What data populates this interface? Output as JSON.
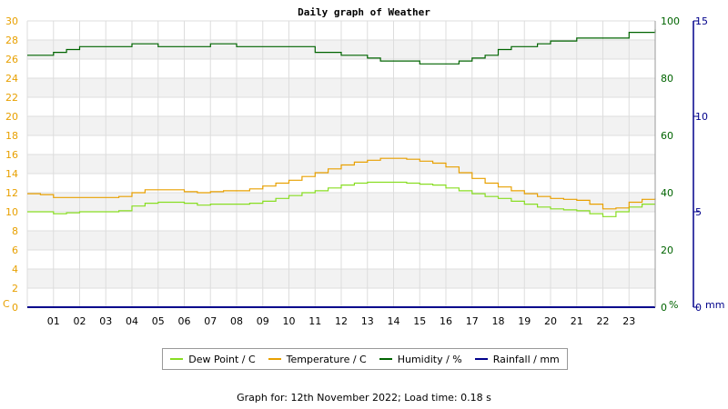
{
  "chart_data": {
    "type": "line",
    "title": "Daily graph of Weather",
    "x_ticks": [
      "01",
      "02",
      "03",
      "04",
      "05",
      "06",
      "07",
      "08",
      "09",
      "10",
      "11",
      "12",
      "13",
      "14",
      "15",
      "16",
      "17",
      "18",
      "19",
      "20",
      "21",
      "22",
      "23"
    ],
    "xlim": [
      0,
      24
    ],
    "axes": {
      "left": {
        "unit": "C",
        "min": 0,
        "max": 30,
        "ticks": [
          0,
          2,
          4,
          6,
          8,
          10,
          12,
          14,
          16,
          18,
          20,
          22,
          24,
          26,
          28,
          30
        ],
        "color": "#e8a000"
      },
      "right1": {
        "unit": "%",
        "min": 0,
        "max": 100,
        "ticks": [
          0,
          20,
          40,
          60,
          80,
          100
        ],
        "color": "#006400"
      },
      "right2": {
        "unit": "mm",
        "min": 0,
        "max": 15,
        "ticks": [
          0,
          5,
          10,
          15
        ],
        "color": "#00008b"
      }
    },
    "grid": true,
    "legend_placement": "bottom",
    "series": [
      {
        "name": "Dew Point / C",
        "axis": "left",
        "color": "#88dd22",
        "x": [
          0,
          0.5,
          1,
          1.5,
          2,
          2.5,
          3,
          3.5,
          4,
          4.5,
          5,
          5.5,
          6,
          6.5,
          7,
          7.5,
          8,
          8.5,
          9,
          9.5,
          10,
          10.5,
          11,
          11.5,
          12,
          12.5,
          13,
          13.5,
          14,
          14.5,
          15,
          15.5,
          16,
          16.5,
          17,
          17.5,
          18,
          18.5,
          19,
          19.5,
          20,
          20.5,
          21,
          21.5,
          22,
          22.5,
          23,
          23.5,
          24
        ],
        "values": [
          10,
          10,
          9.8,
          9.9,
          10,
          10,
          10,
          10.1,
          10.6,
          10.9,
          11,
          11,
          10.9,
          10.7,
          10.8,
          10.8,
          10.8,
          10.9,
          11.1,
          11.4,
          11.7,
          12,
          12.2,
          12.5,
          12.8,
          13,
          13.1,
          13.1,
          13.1,
          13,
          12.9,
          12.8,
          12.5,
          12.2,
          11.9,
          11.6,
          11.4,
          11.1,
          10.8,
          10.5,
          10.3,
          10.2,
          10.1,
          9.8,
          9.5,
          10,
          10.5,
          10.8,
          10.8
        ]
      },
      {
        "name": "Temperature / C",
        "axis": "left",
        "color": "#e8a000",
        "x": [
          0,
          0.5,
          1,
          1.5,
          2,
          2.5,
          3,
          3.5,
          4,
          4.5,
          5,
          5.5,
          6,
          6.5,
          7,
          7.5,
          8,
          8.5,
          9,
          9.5,
          10,
          10.5,
          11,
          11.5,
          12,
          12.5,
          13,
          13.5,
          14,
          14.5,
          15,
          15.5,
          16,
          16.5,
          17,
          17.5,
          18,
          18.5,
          19,
          19.5,
          20,
          20.5,
          21,
          21.5,
          22,
          22.5,
          23,
          23.5,
          24
        ],
        "values": [
          11.9,
          11.8,
          11.5,
          11.5,
          11.5,
          11.5,
          11.5,
          11.6,
          12,
          12.3,
          12.3,
          12.3,
          12.1,
          12,
          12.1,
          12.2,
          12.2,
          12.4,
          12.7,
          13,
          13.3,
          13.7,
          14.1,
          14.5,
          14.9,
          15.2,
          15.4,
          15.6,
          15.6,
          15.5,
          15.3,
          15.1,
          14.7,
          14.1,
          13.5,
          13,
          12.6,
          12.2,
          11.9,
          11.6,
          11.4,
          11.3,
          11.2,
          10.8,
          10.3,
          10.4,
          11,
          11.3,
          11.4
        ]
      },
      {
        "name": "Humidity / %",
        "axis": "right1",
        "color": "#006400",
        "x": [
          0,
          0.5,
          1,
          1.5,
          2,
          2.5,
          3,
          3.5,
          4,
          4.5,
          5,
          5.5,
          6,
          6.5,
          7,
          7.5,
          8,
          8.5,
          9,
          9.5,
          10,
          10.5,
          11,
          11.5,
          12,
          12.5,
          13,
          13.5,
          14,
          14.5,
          15,
          15.5,
          16,
          16.5,
          17,
          17.5,
          18,
          18.5,
          19,
          19.5,
          20,
          20.5,
          21,
          21.5,
          22,
          22.5,
          23,
          23.5,
          24
        ],
        "values": [
          88,
          88,
          89,
          90,
          91,
          91,
          91,
          91,
          92,
          92,
          91,
          91,
          91,
          91,
          92,
          92,
          91,
          91,
          91,
          91,
          91,
          91,
          89,
          89,
          88,
          88,
          87,
          86,
          86,
          86,
          85,
          85,
          85,
          86,
          87,
          88,
          90,
          91,
          91,
          92,
          93,
          93,
          94,
          94,
          94,
          94,
          96,
          96,
          97
        ]
      },
      {
        "name": "Rainfall / mm",
        "axis": "right2",
        "color": "#00008b",
        "x": [
          0,
          24
        ],
        "values": [
          0,
          0
        ]
      }
    ]
  },
  "footer": "Graph for: 12th November 2022; Load time: 0.18 s"
}
